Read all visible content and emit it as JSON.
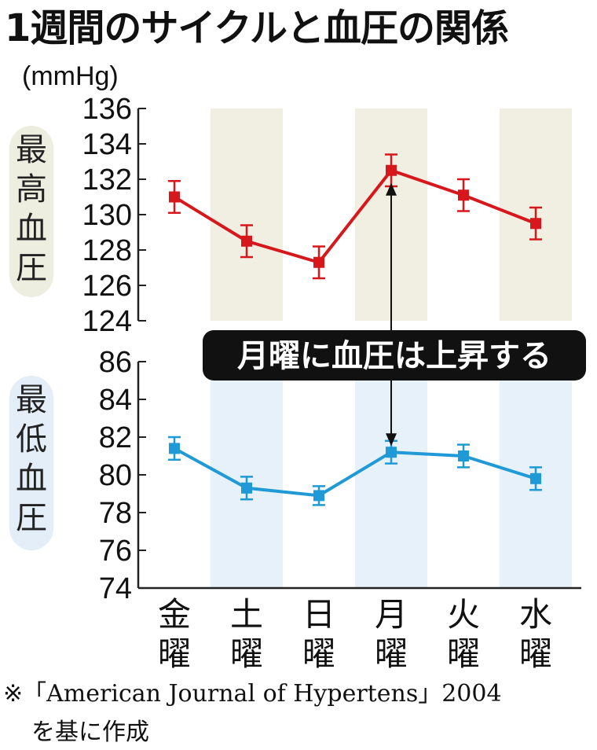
{
  "title": "1週間のサイクルと血圧の関係",
  "unit": "(mmHg)",
  "annotation": "月曜に血圧は上昇する",
  "source_line1": "※「American Journal of Hypertens」2004",
  "source_line2": "を基に作成",
  "chart_data": [
    {
      "type": "line",
      "panel_label": "最高血圧",
      "categories": [
        "金曜",
        "土曜",
        "日曜",
        "月曜",
        "火曜",
        "水曜"
      ],
      "values": [
        131.0,
        128.5,
        127.3,
        132.5,
        131.1,
        129.5
      ],
      "errors": [
        0.9,
        0.9,
        0.9,
        0.9,
        0.9,
        0.9
      ],
      "ylim": [
        124,
        136
      ],
      "yticks": [
        "124",
        "126",
        "128",
        "130",
        "132",
        "134",
        "136"
      ],
      "color": "#d6171b",
      "band_color": "#f1efe2",
      "label_bg": "#eeeee0"
    },
    {
      "type": "line",
      "panel_label": "最低血圧",
      "categories": [
        "金曜",
        "土曜",
        "日曜",
        "月曜",
        "火曜",
        "水曜"
      ],
      "values": [
        81.4,
        79.3,
        78.9,
        81.2,
        81.0,
        79.8
      ],
      "errors": [
        0.6,
        0.6,
        0.5,
        0.6,
        0.6,
        0.6
      ],
      "ylim": [
        74,
        86
      ],
      "yticks": [
        "74",
        "76",
        "78",
        "80",
        "82",
        "84",
        "86"
      ],
      "color": "#1f9ad6",
      "band_color": "#e6f1f9",
      "label_bg": "#e3eef8"
    }
  ],
  "x_labels": [
    "金",
    "土",
    "日",
    "月",
    "火",
    "水"
  ],
  "x_suffix": "曜"
}
